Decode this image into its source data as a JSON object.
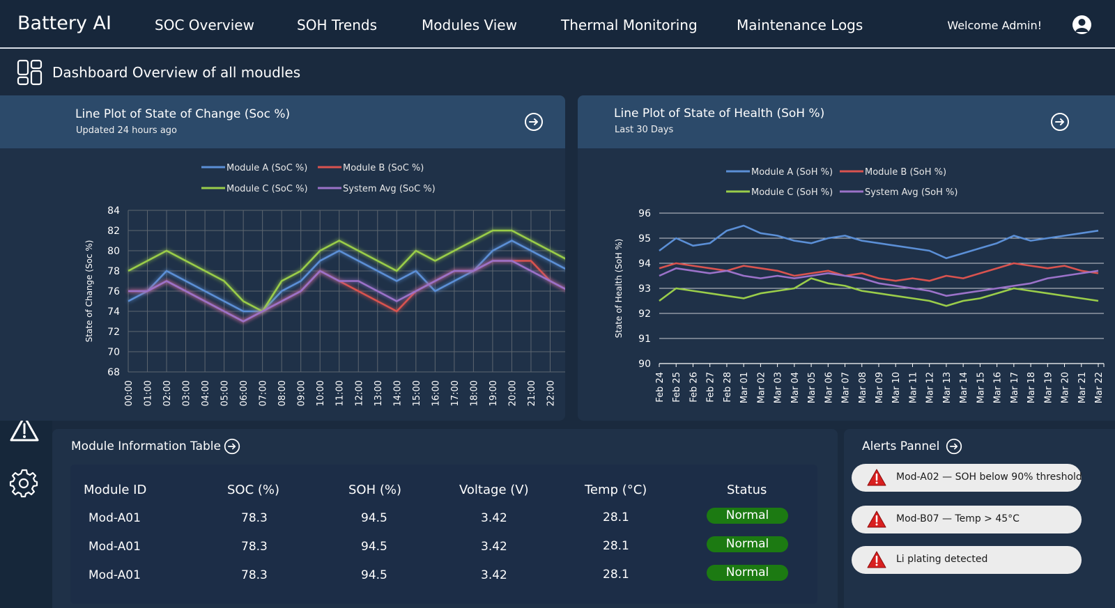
{
  "app": {
    "brand": "Battery AI",
    "welcome": "Welcome Admin!"
  },
  "nav": [
    {
      "label": "SOC Overview"
    },
    {
      "label": "SOH Trends"
    },
    {
      "label": "Modules View"
    },
    {
      "label": "Thermal Monitoring"
    },
    {
      "label": "Maintenance Logs"
    }
  ],
  "subheader": {
    "title": "Dashboard Overview of all moudles"
  },
  "sidebar": {
    "icons": [
      "dashboard-icon",
      "battery-icon",
      "search-icon",
      "chart-icon",
      "database-icon",
      "alert-icon",
      "gear-icon"
    ]
  },
  "soc_panel": {
    "title": "Line Plot of State of Change (Soc %)",
    "subtitle": "Updated 24 hours ago"
  },
  "soh_panel": {
    "title": "Line Plot of State of Health (SoH %)",
    "subtitle": "Last 30 Days"
  },
  "colors": {
    "module_a": "#5b8fd6",
    "module_b": "#d9534f",
    "module_c": "#9acd4a",
    "system_avg": "#9b72c9",
    "status_normal": "#1c7a12",
    "alert_red": "#d81f1f"
  },
  "chart_data": [
    {
      "type": "line",
      "ylabel": "State of Change (Soc %)",
      "xlabel": "",
      "ylim": [
        68,
        84
      ],
      "yticks": [
        68,
        70,
        72,
        74,
        76,
        78,
        80,
        82,
        84
      ],
      "grid": true,
      "legend_position": "top",
      "x": [
        "00:00",
        "01:00",
        "02:00",
        "03:00",
        "04:00",
        "05:00",
        "06:00",
        "07:00",
        "08:00",
        "09:00",
        "10:00",
        "11:00",
        "12:00",
        "13:00",
        "14:00",
        "15:00",
        "16:00",
        "17:00",
        "18:00",
        "19:00",
        "20:00",
        "21:00",
        "22:00",
        "23:00"
      ],
      "series": [
        {
          "name": "Module A (SoC %)",
          "values": [
            75,
            76,
            78,
            77,
            76,
            75,
            74,
            74,
            76,
            77,
            79,
            80,
            79,
            78,
            77,
            78,
            76,
            77,
            78,
            80,
            81,
            80,
            79,
            78
          ]
        },
        {
          "name": "Module B (SoC %)",
          "values": [
            76,
            76,
            77,
            76,
            75,
            74,
            73,
            74,
            75,
            76,
            78,
            77,
            76,
            75,
            74,
            76,
            77,
            78,
            78,
            79,
            79,
            79,
            77,
            76
          ]
        },
        {
          "name": "Module C (SoC %)",
          "values": [
            78,
            79,
            80,
            79,
            78,
            77,
            75,
            74,
            77,
            78,
            80,
            81,
            80,
            79,
            78,
            80,
            79,
            80,
            81,
            82,
            82,
            81,
            80,
            79
          ]
        },
        {
          "name": "System Avg (SoC %)",
          "values": [
            76,
            76,
            77,
            76,
            75,
            74,
            73,
            74,
            75,
            76,
            78,
            77,
            77,
            76,
            75,
            76,
            77,
            78,
            78,
            79,
            79,
            78,
            77,
            76
          ]
        }
      ]
    },
    {
      "type": "line",
      "ylabel": "State of Health (SoH %)",
      "xlabel": "",
      "ylim": [
        90,
        96
      ],
      "yticks": [
        90,
        91,
        92,
        93,
        94,
        95,
        96
      ],
      "grid": true,
      "legend_position": "top",
      "x": [
        "Feb 24",
        "Feb 25",
        "Feb 26",
        "Feb 27",
        "Feb 28",
        "Mar 01",
        "Mar 02",
        "Mar 03",
        "Mar 04",
        "Mar 05",
        "Mar 06",
        "Mar 07",
        "Mar 08",
        "Mar 09",
        "Mar 10",
        "Mar 11",
        "Mar 12",
        "Mar 13",
        "Mar 14",
        "Mar 15",
        "Mar 16",
        "Mar 17",
        "Mar 18",
        "Mar 19",
        "Mar 20",
        "Mar 21",
        "Mar 22"
      ],
      "series": [
        {
          "name": "Module A (SoH %)",
          "values": [
            94.5,
            95.0,
            94.7,
            94.8,
            95.3,
            95.5,
            95.2,
            95.1,
            94.9,
            94.8,
            95.0,
            95.1,
            94.9,
            94.8,
            94.7,
            94.6,
            94.5,
            94.2,
            94.4,
            94.6,
            94.8,
            95.1,
            94.9,
            95.0,
            95.1,
            95.2,
            95.3
          ]
        },
        {
          "name": "Module B (SoH %)",
          "values": [
            93.8,
            94.0,
            93.9,
            93.8,
            93.7,
            93.9,
            93.8,
            93.7,
            93.5,
            93.6,
            93.7,
            93.5,
            93.6,
            93.4,
            93.3,
            93.4,
            93.3,
            93.5,
            93.4,
            93.6,
            93.8,
            94.0,
            93.9,
            93.8,
            93.9,
            93.7,
            93.6
          ]
        },
        {
          "name": "Module C (SoH %)",
          "values": [
            92.5,
            93.0,
            92.9,
            92.8,
            92.7,
            92.6,
            92.8,
            92.9,
            93.0,
            93.4,
            93.2,
            93.1,
            92.9,
            92.8,
            92.7,
            92.6,
            92.5,
            92.3,
            92.5,
            92.6,
            92.8,
            93.0,
            92.9,
            92.8,
            92.7,
            92.6,
            92.5
          ]
        },
        {
          "name": "System Avg (SoH %)",
          "values": [
            93.5,
            93.8,
            93.7,
            93.6,
            93.7,
            93.5,
            93.4,
            93.5,
            93.4,
            93.5,
            93.6,
            93.5,
            93.4,
            93.2,
            93.1,
            93.0,
            92.9,
            92.7,
            92.8,
            92.9,
            93.0,
            93.1,
            93.2,
            93.4,
            93.5,
            93.6,
            93.7
          ]
        }
      ]
    }
  ],
  "table": {
    "title": "Module Information Table",
    "headers": [
      "Module ID",
      "SOC (%)",
      "SOH (%)",
      "Voltage (V)",
      "Temp (°C)",
      "Status"
    ],
    "rows": [
      [
        "Mod-A01",
        "78.3",
        "94.5",
        "3.42",
        "28.1",
        "Normal"
      ],
      [
        "Mod-A01",
        "78.3",
        "94.5",
        "3.42",
        "28.1",
        "Normal"
      ],
      [
        "Mod-A01",
        "78.3",
        "94.5",
        "3.42",
        "28.1",
        "Normal"
      ]
    ]
  },
  "alerts": {
    "title": "Alerts Pannel",
    "items": [
      {
        "text": "Mod-A02 — SOH below 90% threshold"
      },
      {
        "text": "Mod-B07 — Temp > 45°C"
      },
      {
        "text": "Li plating detected"
      }
    ]
  }
}
